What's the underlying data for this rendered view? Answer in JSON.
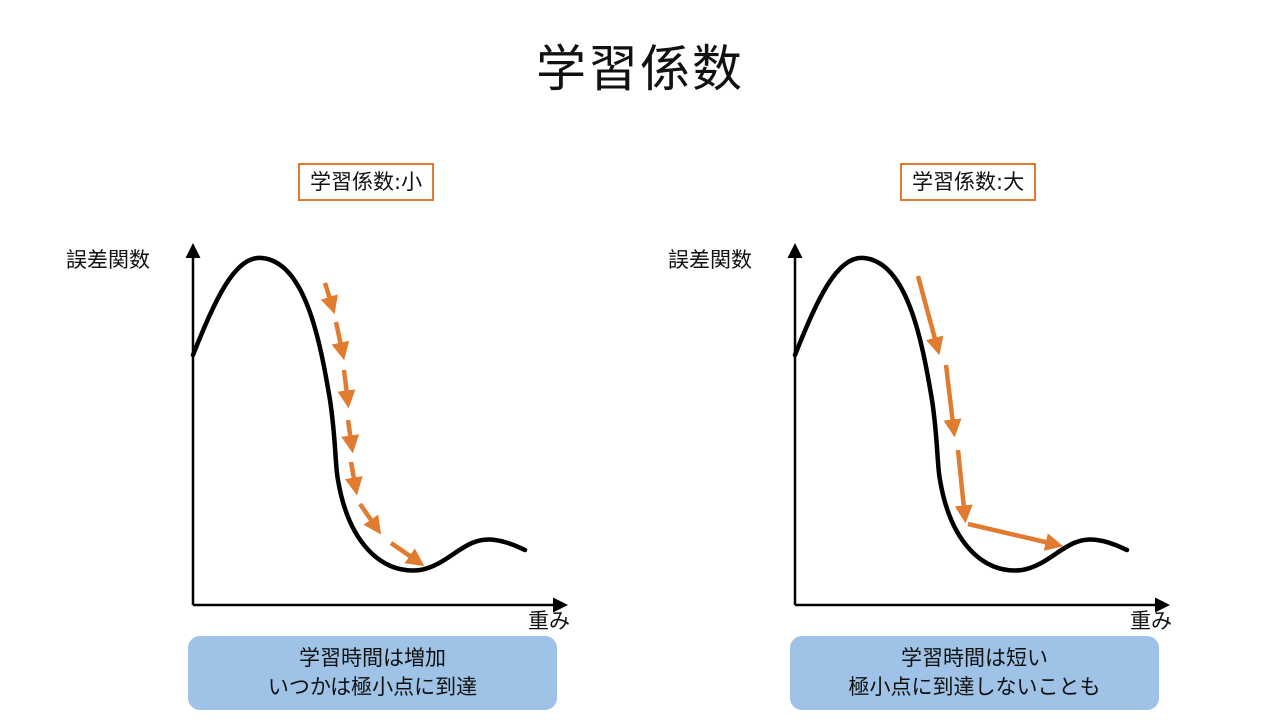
{
  "title": "学習係数",
  "panels": [
    {
      "label": "学習係数:小",
      "ylabel": "誤差関数",
      "xlabel": "重み",
      "note_lines": [
        "学習時間は増加",
        "いつかは極小点に到達"
      ]
    },
    {
      "label": "学習係数:大",
      "ylabel": "誤差関数",
      "xlabel": "重み",
      "note_lines": [
        "学習時間は短い",
        "極小点に到達しないことも"
      ]
    }
  ],
  "colors": {
    "curve": "#000000",
    "arrow": "#e07b30",
    "label_border": "#e07b30",
    "note_bg": "#9fc3e6"
  }
}
